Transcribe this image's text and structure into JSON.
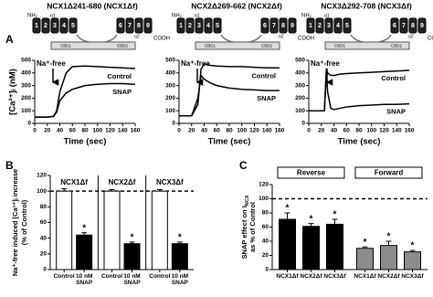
{
  "chart_data": [
    {
      "type": "line",
      "panel_label": "A",
      "title": "NCX1Δ241-680 (NCX1Δf)",
      "diagram": {
        "n_terminus": "NH₂",
        "c_terminus": "COOH",
        "segments": [
          "1",
          "2",
          "3",
          "4",
          "5",
          "6",
          "7",
          "8",
          "9"
        ],
        "alpha": [
          "α1",
          "α2"
        ],
        "cbd": [
          "CBD1",
          "CBD2"
        ]
      },
      "stimulus": "Na⁺-free",
      "xlabel": "Time (sec)",
      "ylabel": "[Ca²⁺]ᵢ (nM)",
      "x": [
        0,
        10,
        20,
        30,
        35,
        40,
        50,
        60,
        80,
        100,
        120,
        140,
        160
      ],
      "series": [
        {
          "name": "Control",
          "color": "#000",
          "values": [
            50,
            50,
            50,
            55,
            100,
            250,
            400,
            450,
            455,
            450,
            445,
            440,
            435
          ]
        },
        {
          "name": "SNAP",
          "color": "#000",
          "values": [
            50,
            50,
            50,
            55,
            90,
            180,
            240,
            270,
            300,
            310,
            315,
            315,
            310
          ]
        }
      ],
      "xlim": [
        0,
        160
      ],
      "xticks": [
        0,
        20,
        40,
        60,
        80,
        100,
        120,
        140,
        160
      ],
      "ylim": [
        0,
        500
      ],
      "yticks": [
        0,
        100,
        200,
        300,
        400,
        500
      ]
    },
    {
      "type": "line",
      "title": "NCX2Δ269-662 (NCX2Δf)",
      "diagram": {
        "n_terminus": "NH₂",
        "c_terminus": "COOH",
        "segments": [
          "1",
          "2",
          "3",
          "4",
          "5",
          "6",
          "7",
          "8",
          "9"
        ],
        "alpha": [
          "α1",
          "α2"
        ],
        "cbd": [
          "CBD1",
          "CBD2"
        ]
      },
      "stimulus": "Na⁺-free",
      "xlabel": "Time (sec)",
      "x": [
        0,
        10,
        20,
        30,
        35,
        40,
        50,
        60,
        80,
        100,
        120,
        140,
        160
      ],
      "series": [
        {
          "name": "Control",
          "color": "#000",
          "values": [
            60,
            60,
            60,
            150,
            430,
            470,
            460,
            455,
            450,
            450,
            445,
            440,
            440
          ]
        },
        {
          "name": "SNAP",
          "color": "#000",
          "values": [
            60,
            60,
            60,
            200,
            380,
            350,
            320,
            300,
            280,
            270,
            265,
            260,
            260
          ]
        }
      ],
      "xlim": [
        0,
        160
      ],
      "xticks": [
        0,
        20,
        40,
        60,
        80,
        100,
        120,
        140,
        160
      ],
      "ylim": [
        0,
        500
      ],
      "yticks": [
        0,
        100,
        200,
        300,
        400,
        500
      ]
    },
    {
      "type": "line",
      "title": "NCX3Δ292-708 (NCX3Δf)",
      "diagram": {
        "n_terminus": "NH₂",
        "c_terminus": "COOH",
        "segments": [
          "1",
          "2",
          "3",
          "4",
          "5",
          "6",
          "7",
          "8",
          "9"
        ],
        "alpha": [
          "α1",
          "α2"
        ],
        "cbd": [
          "CBD1",
          "CBD2"
        ]
      },
      "stimulus": "Na⁺-free",
      "xlabel": "Time (sec)",
      "x": [
        0,
        10,
        20,
        25,
        28,
        30,
        35,
        40,
        50,
        60,
        80,
        100,
        120,
        140,
        160
      ],
      "series": [
        {
          "name": "Control",
          "color": "#000",
          "values": [
            100,
            100,
            100,
            100,
            420,
            400,
            380,
            380,
            390,
            395,
            400,
            405,
            410,
            415,
            420
          ]
        },
        {
          "name": "SNAP",
          "color": "#000",
          "values": [
            100,
            100,
            100,
            100,
            420,
            250,
            120,
            110,
            120,
            130,
            140,
            145,
            150,
            150,
            155
          ]
        }
      ],
      "xlim": [
        0,
        160
      ],
      "xticks": [
        0,
        20,
        40,
        60,
        80,
        100,
        120,
        140,
        160
      ],
      "ylim": [
        0,
        500
      ],
      "yticks": [
        0,
        100,
        200,
        300,
        400,
        500
      ]
    },
    {
      "type": "bar",
      "panel_label": "B",
      "group_by": "category",
      "ylabel": [
        "Na⁺-free induced [Ca²⁺]ᵢ increase",
        "(% of Control)"
      ],
      "categories": [
        "NCX1Δf",
        "NCX2Δf",
        "NCX3Δf"
      ],
      "series": [
        {
          "name": "Control",
          "color": "#ffffff",
          "values": [
            100,
            100,
            100
          ],
          "errors": [
            3,
            2,
            2
          ]
        },
        {
          "name": "10 nM SNAP",
          "color": "#000000",
          "values": [
            44,
            33,
            33
          ],
          "errors": [
            3,
            2,
            2
          ],
          "marker": "*"
        }
      ],
      "reference_line": 100,
      "ylim": [
        0,
        120
      ],
      "yticks": [
        0,
        20,
        40,
        60,
        80,
        100,
        120
      ]
    },
    {
      "type": "bar",
      "panel_label": "C",
      "group_by": "series",
      "ylabel": {
        "text": "SNAP effect on I",
        "subscript": "NCX",
        "line2": "as % of Control"
      },
      "categories": [
        "NCX1Δf",
        "NCX2Δf",
        "NCX3Δf"
      ],
      "series": [
        {
          "name": "Reverse",
          "color": "#000000",
          "values": [
            71,
            61,
            64
          ],
          "errors": [
            9,
            4,
            7
          ],
          "marker": "*"
        },
        {
          "name": "Forward",
          "color": "#8c8c8c",
          "values": [
            30,
            34,
            25
          ],
          "errors": [
            2,
            6,
            2
          ],
          "marker": "*"
        }
      ],
      "reference_line": 100,
      "ylim": [
        0,
        120
      ],
      "yticks": [
        0,
        20,
        40,
        60,
        80,
        100,
        120
      ]
    }
  ]
}
